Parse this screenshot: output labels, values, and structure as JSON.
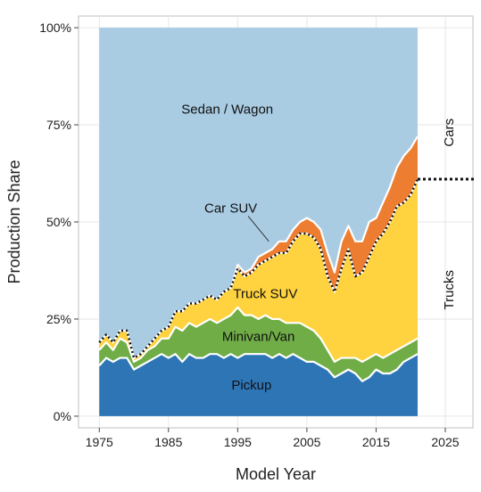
{
  "chart_data": {
    "type": "area",
    "xlabel": "Model Year",
    "ylabel": "Production Share",
    "xlim": [
      1972,
      2029
    ],
    "ylim": [
      -0.03,
      1.03
    ],
    "x_ticks": [
      1975,
      1985,
      1995,
      2005,
      2015,
      2025
    ],
    "x_tick_labels": [
      "1975",
      "1985",
      "1995",
      "2005",
      "2015",
      "2025"
    ],
    "y_ticks": [
      0,
      0.25,
      0.5,
      0.75,
      1.0
    ],
    "y_tick_labels": [
      "0%",
      "25%",
      "50%",
      "75%",
      "100%"
    ],
    "grid": true,
    "colors": {
      "Pickup": "#2E75B6",
      "Minivan/Van": "#70AD47",
      "Truck SUV": "#FFD23F",
      "Car SUV": "#ED7D31",
      "Sedan / Wagon": "#A9CCE3"
    },
    "x": [
      1975,
      1976,
      1977,
      1978,
      1979,
      1980,
      1981,
      1982,
      1983,
      1984,
      1985,
      1986,
      1987,
      1988,
      1989,
      1990,
      1991,
      1992,
      1993,
      1994,
      1995,
      1996,
      1997,
      1998,
      1999,
      2000,
      2001,
      2002,
      2003,
      2004,
      2005,
      2006,
      2007,
      2008,
      2009,
      2010,
      2011,
      2012,
      2013,
      2014,
      2015,
      2016,
      2017,
      2018,
      2019,
      2020,
      2021
    ],
    "series": [
      {
        "name": "Pickup",
        "values": [
          0.13,
          0.15,
          0.14,
          0.15,
          0.15,
          0.12,
          0.13,
          0.14,
          0.15,
          0.16,
          0.15,
          0.16,
          0.14,
          0.16,
          0.15,
          0.15,
          0.16,
          0.16,
          0.15,
          0.16,
          0.15,
          0.16,
          0.16,
          0.16,
          0.16,
          0.15,
          0.16,
          0.15,
          0.16,
          0.15,
          0.14,
          0.14,
          0.13,
          0.12,
          0.1,
          0.11,
          0.12,
          0.11,
          0.09,
          0.1,
          0.12,
          0.11,
          0.11,
          0.12,
          0.14,
          0.15,
          0.16
        ]
      },
      {
        "name": "Minivan/Van",
        "values": [
          0.04,
          0.04,
          0.03,
          0.05,
          0.04,
          0.02,
          0.02,
          0.03,
          0.03,
          0.04,
          0.05,
          0.07,
          0.08,
          0.08,
          0.08,
          0.09,
          0.09,
          0.08,
          0.1,
          0.1,
          0.13,
          0.1,
          0.1,
          0.09,
          0.1,
          0.1,
          0.09,
          0.09,
          0.08,
          0.09,
          0.09,
          0.08,
          0.07,
          0.05,
          0.04,
          0.04,
          0.03,
          0.04,
          0.05,
          0.05,
          0.04,
          0.04,
          0.05,
          0.05,
          0.04,
          0.04,
          0.04
        ]
      },
      {
        "name": "Truck SUV",
        "values": [
          0.02,
          0.02,
          0.02,
          0.02,
          0.03,
          0.01,
          0.01,
          0.01,
          0.02,
          0.02,
          0.03,
          0.04,
          0.05,
          0.05,
          0.06,
          0.06,
          0.06,
          0.06,
          0.07,
          0.07,
          0.1,
          0.1,
          0.11,
          0.14,
          0.14,
          0.16,
          0.17,
          0.18,
          0.21,
          0.23,
          0.24,
          0.24,
          0.23,
          0.19,
          0.18,
          0.23,
          0.28,
          0.21,
          0.23,
          0.26,
          0.29,
          0.32,
          0.34,
          0.37,
          0.37,
          0.38,
          0.41
        ]
      },
      {
        "name": "Car SUV",
        "values": [
          0,
          0,
          0,
          0,
          0,
          0,
          0,
          0,
          0,
          0,
          0,
          0,
          0,
          0,
          0,
          0,
          0,
          0,
          0,
          0,
          0.01,
          0.01,
          0.01,
          0.02,
          0.02,
          0.02,
          0.03,
          0.03,
          0.03,
          0.03,
          0.04,
          0.04,
          0.05,
          0.06,
          0.05,
          0.07,
          0.06,
          0.09,
          0.08,
          0.09,
          0.06,
          0.08,
          0.09,
          0.1,
          0.12,
          0.12,
          0.11
        ]
      },
      {
        "name": "Sedan / Wagon",
        "values": [
          0.81,
          0.79,
          0.81,
          0.78,
          0.78,
          0.85,
          0.84,
          0.82,
          0.8,
          0.78,
          0.77,
          0.73,
          0.73,
          0.71,
          0.71,
          0.7,
          0.69,
          0.7,
          0.68,
          0.67,
          0.61,
          0.63,
          0.62,
          0.59,
          0.58,
          0.57,
          0.55,
          0.55,
          0.52,
          0.5,
          0.49,
          0.5,
          0.52,
          0.58,
          0.63,
          0.55,
          0.51,
          0.55,
          0.55,
          0.5,
          0.49,
          0.45,
          0.41,
          0.36,
          0.33,
          0.31,
          0.28
        ]
      }
    ],
    "annotations": {
      "area_labels": [
        {
          "series": "Sedan / Wagon",
          "text": "Sedan / Wagon",
          "x": 1993.5,
          "y": 0.79
        },
        {
          "series": "Car SUV",
          "text": "Car SUV",
          "x": 1994,
          "y": 0.535
        },
        {
          "series": "Truck SUV",
          "text": "Truck SUV",
          "x": 1999,
          "y": 0.315
        },
        {
          "series": "Minivan/Van",
          "text": "Minivan/Van",
          "x": 1998,
          "y": 0.205
        },
        {
          "series": "Pickup",
          "text": "Pickup",
          "x": 1997,
          "y": 0.08
        }
      ],
      "callout": {
        "from": [
          1996.5,
          0.515
        ],
        "to": [
          1999.5,
          0.45
        ]
      },
      "cars_trucks_divider_y": 0.61,
      "side_labels": [
        {
          "text": "Cars",
          "y": 0.73
        },
        {
          "text": "Trucks",
          "y": 0.325
        }
      ]
    }
  }
}
